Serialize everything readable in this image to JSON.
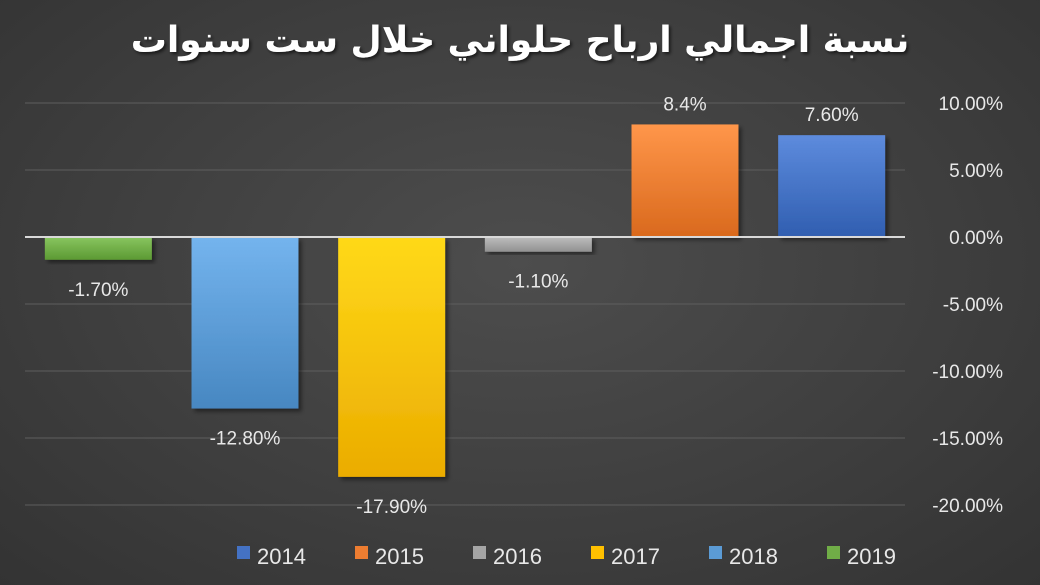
{
  "chart_data": {
    "type": "bar",
    "title": "نسبة اجمالي ارباح حلواني خلال ست سنوات",
    "xlabel": "",
    "ylabel": "",
    "categories": [
      "2014",
      "2015",
      "2016",
      "2017",
      "2018",
      "2019"
    ],
    "values": [
      7.6,
      8.4,
      -1.1,
      -17.9,
      -12.8,
      -1.7
    ],
    "data_labels": [
      "7.60%",
      "8.4%",
      "-1.10%",
      "-17.90%",
      "-12.80%",
      "-1.70%"
    ],
    "colors": [
      "#4472c4",
      "#ed7d31",
      "#a5a5a5",
      "#ffc000",
      "#5b9bd5",
      "#70ad47"
    ],
    "ylim": [
      -20,
      10
    ],
    "yticks": [
      10,
      5,
      0,
      -5,
      -10,
      -15,
      -20
    ],
    "ytick_labels": [
      "10.00%",
      "5.00%",
      "0.00%",
      "-5.00%",
      "-10.00%",
      "-15.00%",
      "-20.00%"
    ],
    "y_axis_position": "right",
    "x_order": "right-to-left",
    "grid": true,
    "legend": {
      "position": "bottom",
      "entries": [
        "2014",
        "2015",
        "2016",
        "2017",
        "2018",
        "2019"
      ]
    }
  }
}
